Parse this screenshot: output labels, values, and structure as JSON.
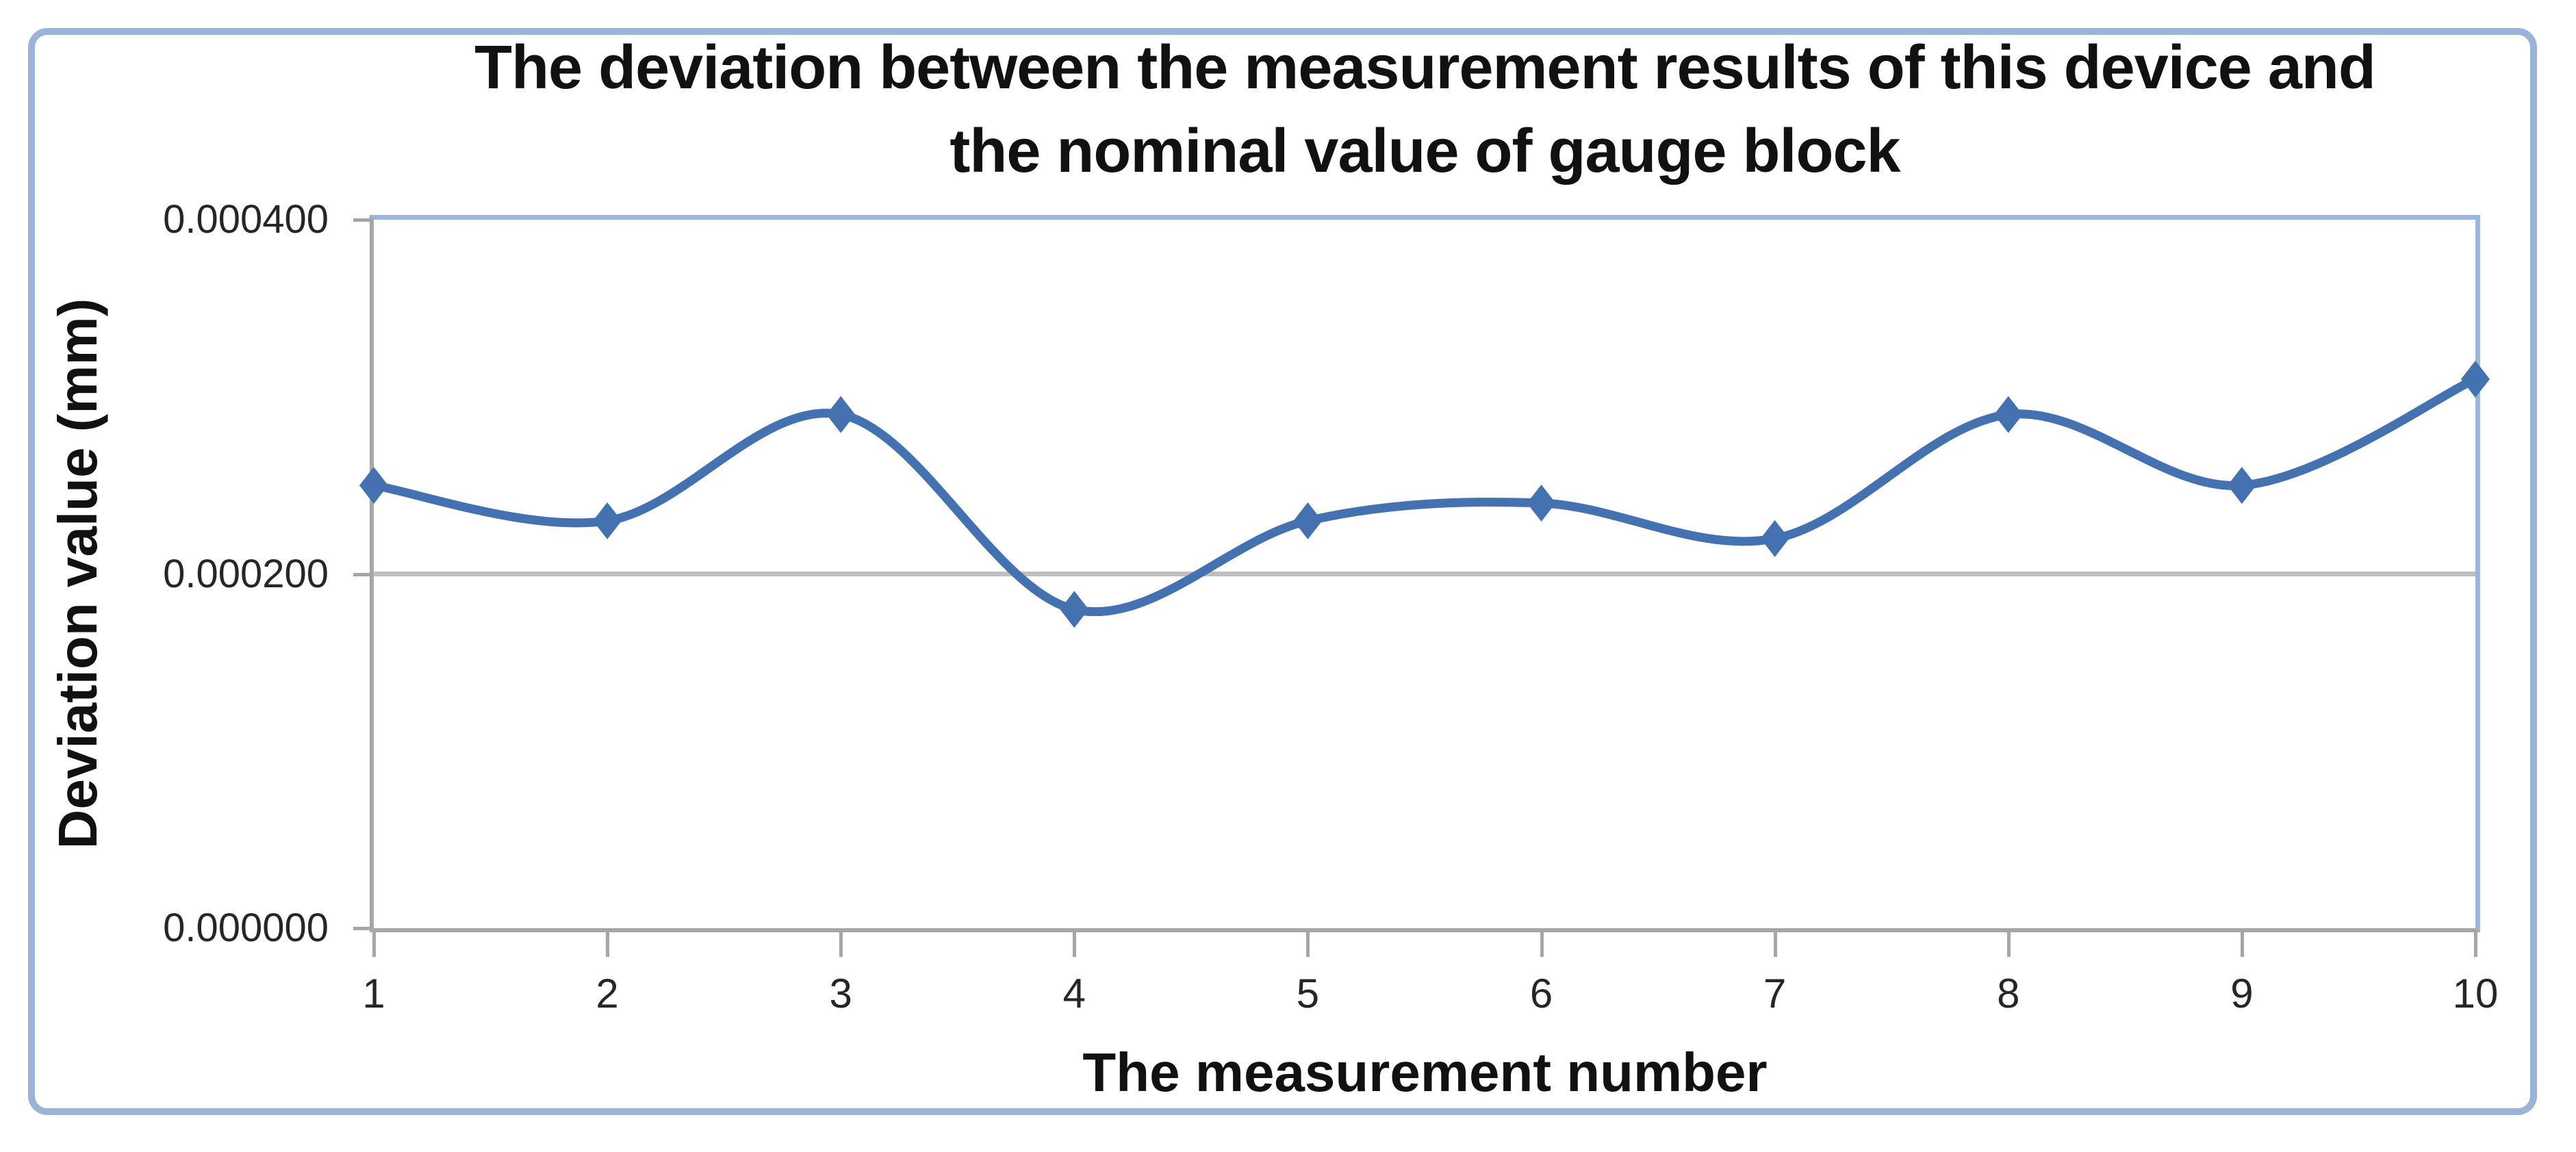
{
  "chart_data": {
    "type": "line",
    "title": "The deviation between the measurement results of this device and the nominal value of gauge block",
    "title_lines": [
      "The deviation between the measurement results of this device and",
      "the nominal value of gauge block"
    ],
    "xlabel": "The measurement number",
    "ylabel": "Deviation value (mm)",
    "categories": [
      1,
      2,
      3,
      4,
      5,
      6,
      7,
      8,
      9,
      10
    ],
    "xtick_labels": [
      "1",
      "2",
      "3",
      "4",
      "5",
      "6",
      "7",
      "8",
      "9",
      "10"
    ],
    "values": [
      0.00025,
      0.00023,
      0.00029,
      0.00018,
      0.00023,
      0.00024,
      0.00022,
      0.00029,
      0.00025,
      0.00031
    ],
    "ylim": [
      0,
      0.0004
    ],
    "yticks": [
      {
        "value": 0.0,
        "label": "0.000000"
      },
      {
        "value": 0.0002,
        "label": "0.000200"
      },
      {
        "value": 0.0004,
        "label": "0.000400"
      }
    ],
    "grid_values": [
      0.0002
    ],
    "grid": "single horizontal gridline",
    "legend": "none",
    "line_style": "smooth",
    "marker": "diamond"
  },
  "colors": {
    "series": "#4472b0",
    "gridline": "#bfbfbf",
    "axis": "#a6a6a6",
    "plot_border": "#9cb6da",
    "frame_border": "#9ab3d8",
    "title_text": "#111111",
    "tick_text": "#262626"
  }
}
